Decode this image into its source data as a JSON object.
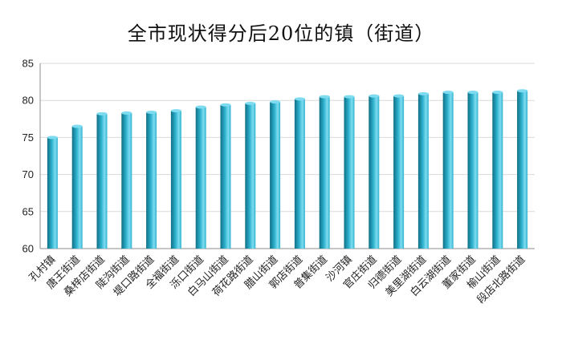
{
  "chart_data": {
    "type": "bar",
    "title": "全市现状得分后20位的镇（街道）",
    "xlabel": "",
    "ylabel": "",
    "ylim": [
      60,
      85
    ],
    "yticks": [
      60,
      65,
      70,
      75,
      80,
      85
    ],
    "grid": true,
    "legend": "none",
    "categories": [
      "孔村镇",
      "唐王街道",
      "桑梓店街道",
      "陡沟街道",
      "堤口路街道",
      "全福街道",
      "泺口街道",
      "白马山街道",
      "荷花路街道",
      "腊山街道",
      "郭店街道",
      "普集街道",
      "沙河镇",
      "官庄街道",
      "归德街道",
      "美里湖街道",
      "白云湖街道",
      "董家街道",
      "榆山街道",
      "段店北路街道"
    ],
    "values": [
      75.0,
      76.5,
      78.2,
      78.3,
      78.4,
      78.6,
      79.1,
      79.4,
      79.6,
      79.8,
      80.2,
      80.5,
      80.5,
      80.6,
      80.6,
      80.9,
      81.1,
      81.1,
      81.1,
      81.3
    ],
    "colors": {
      "bar_dark": "#0f6f86",
      "bar_mid": "#2fb3cf",
      "bar_light": "#7fdcf0",
      "grid": "#d9d9d9",
      "axis": "#8c8c8c"
    }
  }
}
